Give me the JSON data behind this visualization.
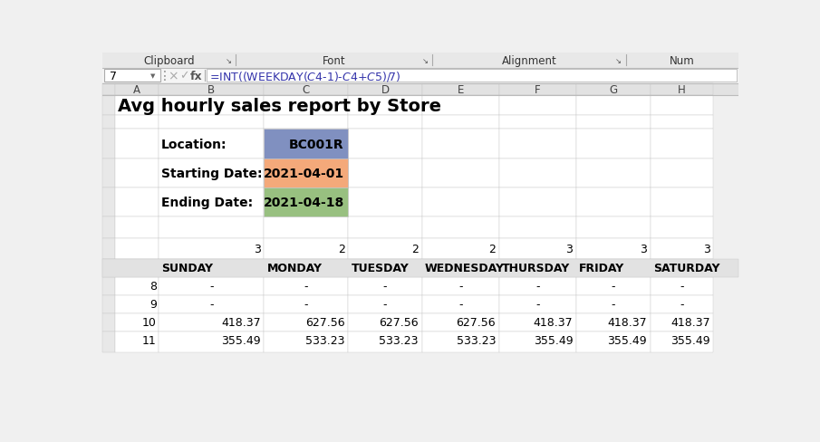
{
  "title": "Avg hourly sales report by Store",
  "formula_bar": "=INT((WEEKDAY($C$4-1)-$C$4+$C$5)/7)",
  "cell_ref": "7",
  "ribbon_labels": [
    "Clipboard",
    "Font",
    "Alignment",
    "Num"
  ],
  "col_headers": [
    "A",
    "B",
    "C",
    "D",
    "E",
    "F",
    "G",
    "H"
  ],
  "location_label": "Location:",
  "location_value": "BC001R",
  "location_bg": "#8090C0",
  "starting_label": "Starting Date:",
  "starting_value": "2021-04-01",
  "starting_bg": "#F4A97A",
  "ending_label": "Ending Date:",
  "ending_value": "2021-04-18",
  "ending_bg": "#98C080",
  "counts_row": [
    "3",
    "2",
    "2",
    "2",
    "3",
    "3",
    "3"
  ],
  "day_headers": [
    "SUNDAY",
    "MONDAY",
    "TUESDAY",
    "WEDNESDAY",
    "THURSDAY",
    "FRIDAY",
    "SATURDAY"
  ],
  "data_rows": [
    {
      "hour": "8",
      "values": [
        "-",
        "-",
        "-",
        "-",
        "-",
        "-",
        "-"
      ]
    },
    {
      "hour": "9",
      "values": [
        "-",
        "-",
        "-",
        "-",
        "-",
        "-",
        "-"
      ]
    },
    {
      "hour": "10",
      "values": [
        "418.37",
        "627.56",
        "627.56",
        "627.56",
        "418.37",
        "418.37",
        "418.37"
      ]
    },
    {
      "hour": "11",
      "values": [
        "355.49",
        "533.23",
        "533.23",
        "533.23",
        "355.49",
        "355.49",
        "355.49"
      ]
    }
  ],
  "bg_color": "#F0F0F0",
  "grid_color": "#C8C8C8",
  "cell_bg": "#FFFFFF",
  "header_bg": "#E2E2E2",
  "ribbon_bg": "#E8E8E8",
  "row_num_bg": "#E8E8E8",
  "formula_text_color": "#3333AA"
}
